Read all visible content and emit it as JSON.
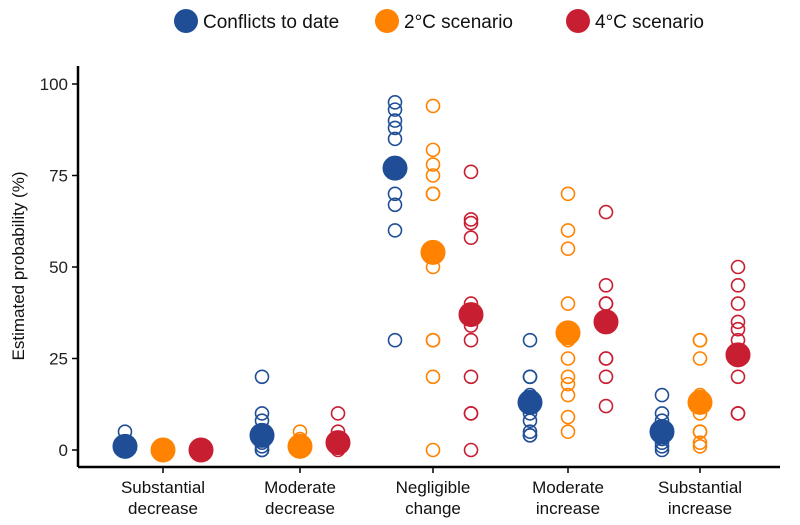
{
  "chart_data": {
    "type": "scatter",
    "title": "",
    "xlabel": "",
    "ylabel": "Estimated probability (%)",
    "ylim": [
      0,
      100
    ],
    "yticks": [
      "0",
      "25",
      "50",
      "75",
      "100"
    ],
    "categories": [
      [
        "Substantial",
        "decrease"
      ],
      [
        "Moderate",
        "decrease"
      ],
      [
        "Negligible",
        "change"
      ],
      [
        "Moderate",
        "increase"
      ],
      [
        "Substantial",
        "increase"
      ]
    ],
    "legend_position": "top",
    "series": [
      {
        "name": "Conflicts to date",
        "color": "#1f4e96",
        "means": [
          1,
          4,
          77,
          13,
          5
        ],
        "responses": [
          [
            5,
            1,
            0
          ],
          [
            20,
            10,
            8,
            5,
            2,
            1,
            0,
            0
          ],
          [
            95,
            93,
            90,
            88,
            85,
            76,
            70,
            67,
            60,
            30
          ],
          [
            30,
            20,
            20,
            15,
            10,
            8,
            5,
            4,
            4
          ],
          [
            15,
            10,
            8,
            6,
            5,
            3,
            2,
            1,
            0
          ]
        ]
      },
      {
        "name": "2°C scenario",
        "color": "#ff8200",
        "means": [
          0,
          1,
          54,
          32,
          13
        ],
        "responses": [
          [
            0,
            0,
            0
          ],
          [
            5,
            3,
            2,
            1,
            0,
            0
          ],
          [
            94,
            82,
            78,
            75,
            70,
            70,
            50,
            30,
            30,
            20,
            0
          ],
          [
            70,
            60,
            55,
            40,
            30,
            25,
            20,
            18,
            15,
            9,
            5
          ],
          [
            30,
            30,
            25,
            15,
            13,
            10,
            5,
            5,
            2,
            1
          ]
        ]
      },
      {
        "name": "4°C scenario",
        "color": "#c81e32",
        "means": [
          0,
          2,
          37,
          35,
          26
        ],
        "responses": [
          [
            1,
            0,
            0
          ],
          [
            10,
            5,
            3,
            2,
            1,
            0
          ],
          [
            76,
            63,
            62,
            58,
            40,
            37,
            34,
            30,
            20,
            10,
            10,
            0
          ],
          [
            65,
            45,
            40,
            40,
            36,
            34,
            25,
            25,
            20,
            12
          ],
          [
            50,
            45,
            40,
            35,
            33,
            30,
            26,
            20,
            10,
            10
          ]
        ]
      }
    ]
  }
}
